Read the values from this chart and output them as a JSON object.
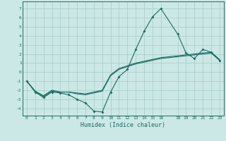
{
  "title": "",
  "xlabel": "Humidex (Indice chaleur)",
  "ylabel": "",
  "bg_color": "#cce8e6",
  "grid_color": "#aacfcc",
  "line_color": "#1a6b63",
  "xlim": [
    -0.5,
    23.5
  ],
  "ylim": [
    -4.8,
    7.8
  ],
  "xticks": [
    0,
    1,
    2,
    3,
    4,
    5,
    6,
    7,
    8,
    9,
    10,
    11,
    12,
    13,
    14,
    15,
    16,
    18,
    19,
    20,
    21,
    22,
    23
  ],
  "yticks": [
    -4,
    -3,
    -2,
    -1,
    0,
    1,
    2,
    3,
    4,
    5,
    6,
    7
  ],
  "line1_x": [
    0,
    1,
    2,
    3,
    4,
    5,
    6,
    7,
    8,
    9,
    10,
    11,
    12,
    13,
    14,
    15,
    16,
    18,
    19,
    20,
    21,
    22,
    23
  ],
  "line1_y": [
    -1.0,
    -2.2,
    -2.8,
    -2.2,
    -2.3,
    -2.5,
    -3.0,
    -3.4,
    -4.3,
    -4.4,
    -2.2,
    -0.5,
    0.3,
    2.5,
    4.5,
    6.1,
    7.0,
    4.2,
    2.1,
    1.5,
    2.5,
    2.2,
    1.3
  ],
  "line2_x": [
    0,
    1,
    2,
    3,
    4,
    5,
    6,
    7,
    8,
    9,
    10,
    11,
    12,
    13,
    14,
    15,
    16,
    18,
    19,
    20,
    21,
    22,
    23
  ],
  "line2_y": [
    -1.0,
    -2.1,
    -2.7,
    -2.1,
    -2.2,
    -2.2,
    -2.4,
    -2.5,
    -2.3,
    -2.1,
    -0.4,
    0.3,
    0.6,
    0.9,
    1.1,
    1.3,
    1.5,
    1.7,
    1.8,
    1.9,
    2.0,
    2.1,
    1.3
  ],
  "line3_x": [
    0,
    1,
    2,
    3,
    4,
    5,
    6,
    7,
    8,
    9,
    10,
    11,
    12,
    13,
    14,
    15,
    16,
    18,
    19,
    20,
    21,
    22,
    23
  ],
  "line3_y": [
    -1.0,
    -2.1,
    -2.6,
    -2.0,
    -2.2,
    -2.2,
    -2.3,
    -2.4,
    -2.2,
    -2.0,
    -0.3,
    0.4,
    0.7,
    1.0,
    1.2,
    1.4,
    1.6,
    1.8,
    1.9,
    2.0,
    2.1,
    2.2,
    1.4
  ]
}
